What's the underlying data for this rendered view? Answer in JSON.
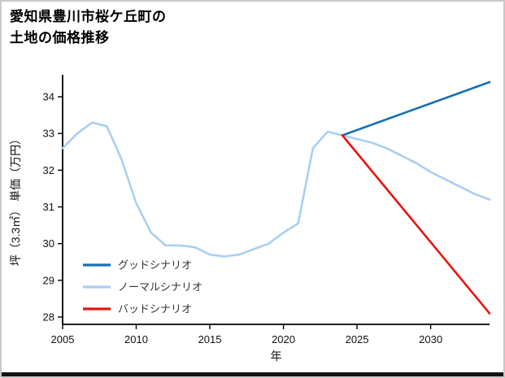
{
  "window": {
    "background": "#ffffff",
    "border_color": "#c9c9c9",
    "bottom_bar_color": "#141414"
  },
  "title": {
    "line1": "愛知県豊川市桜ケ丘町の",
    "line2": "土地の価格推移"
  },
  "chart_data": {
    "type": "line",
    "title": "愛知県豊川市桜ケ丘町の土地の価格推移",
    "xlabel": "年",
    "ylabel": "坪（3.3㎡） 単価（万円）",
    "xlim": [
      2005,
      2034
    ],
    "ylim": [
      27.8,
      34.6
    ],
    "xticks": [
      2005,
      2010,
      2015,
      2020,
      2025,
      2030
    ],
    "yticks": [
      28,
      29,
      30,
      31,
      32,
      33,
      34
    ],
    "grid": false,
    "legend_position": "lower-left-inside",
    "series": [
      {
        "name": "グッドシナリオ",
        "color": "#1670b4",
        "width": 2.6,
        "zorder": 2,
        "x": [
          2024,
          2034
        ],
        "y": [
          32.95,
          34.4
        ]
      },
      {
        "name": "ノーマルシナリオ",
        "color": "#a9cff2",
        "width": 2.6,
        "zorder": 1,
        "x": [
          2005,
          2006,
          2007,
          2008,
          2009,
          2010,
          2011,
          2012,
          2013,
          2014,
          2015,
          2016,
          2017,
          2018,
          2019,
          2020,
          2021,
          2022,
          2023,
          2024,
          2025,
          2026,
          2027,
          2028,
          2029,
          2030,
          2031,
          2032,
          2033,
          2034
        ],
        "y": [
          32.6,
          33.0,
          33.3,
          33.2,
          32.3,
          31.1,
          30.3,
          29.95,
          29.95,
          29.9,
          29.7,
          29.65,
          29.7,
          29.85,
          30.0,
          30.3,
          30.55,
          32.6,
          33.05,
          32.95,
          32.85,
          32.75,
          32.6,
          32.4,
          32.2,
          31.95,
          31.75,
          31.55,
          31.35,
          31.2
        ]
      },
      {
        "name": "バッドシナリオ",
        "color": "#e8150d",
        "width": 2.6,
        "zorder": 3,
        "x": [
          2024,
          2034
        ],
        "y": [
          32.95,
          28.1
        ]
      }
    ]
  }
}
